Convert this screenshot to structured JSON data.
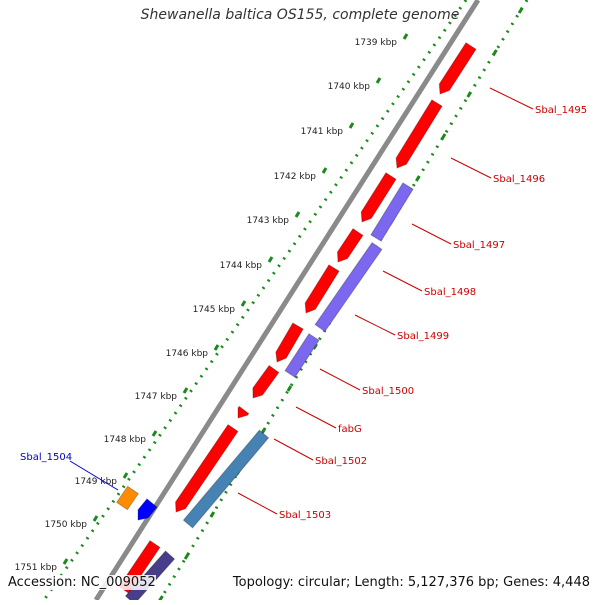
{
  "title": "Shewanella baltica OS155, complete genome",
  "footer": {
    "accession": "Accession: NC_009052",
    "summary": "Topology: circular; Length: 5,127,376 bp; Genes: 4,448"
  },
  "colors": {
    "backbone": "#8a8a8a",
    "tick_dots": "#1a8a1a",
    "forward_gene": "#ff0000",
    "reverse_gene": "#7b68ee",
    "rna_gene": "#4682b4",
    "label_red": "#cc0000",
    "label_blue": "#0000cc",
    "orange_gene": "#ff8c00",
    "blue_gene": "#0000ff",
    "darkblue_gene": "#483d8b"
  },
  "scale_labels": [
    "1739 kbp",
    "1740 kbp",
    "1741 kbp",
    "1742 kbp",
    "1743 kbp",
    "1744 kbp",
    "1745 kbp",
    "1746 kbp",
    "1747 kbp",
    "1748 kbp",
    "1749 kbp",
    "1750 kbp",
    "1751 kbp"
  ],
  "gene_labels_right": [
    "Sbal_1495",
    "Sbal_1496",
    "Sbal_1497",
    "Sbal_1498",
    "Sbal_1499",
    "Sbal_1500",
    "fabG",
    "Sbal_1502",
    "Sbal_1503"
  ],
  "gene_labels_left": [
    "Sbal_1504"
  ]
}
